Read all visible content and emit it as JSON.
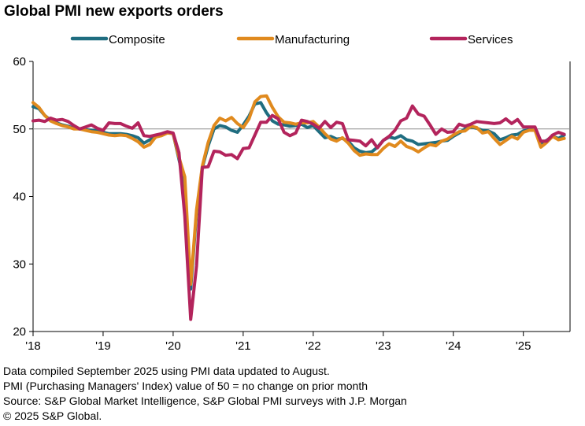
{
  "title": "Global PMI new exports orders",
  "colors": {
    "composite": "#1f6d80",
    "manufacturing": "#e08a1e",
    "services": "#b3245c",
    "reference_line": "#8c8c8c"
  },
  "chart_data": {
    "type": "line",
    "title": "Global PMI new exports orders",
    "xlabel": "",
    "ylabel": "",
    "ylim": [
      20,
      60
    ],
    "yticks": [
      "60",
      "50",
      "40",
      "30",
      "20"
    ],
    "xlim": [
      0,
      92
    ],
    "xtick_labels": [
      "'18",
      "'19",
      "'20",
      "'21",
      "'22",
      "'23",
      "'24",
      "'25"
    ],
    "reference_line": 50,
    "grid": false,
    "legend_position": "top",
    "x": [
      "2018-01",
      "2018-02",
      "2018-03",
      "2018-04",
      "2018-05",
      "2018-06",
      "2018-07",
      "2018-08",
      "2018-09",
      "2018-10",
      "2018-11",
      "2018-12",
      "2019-01",
      "2019-02",
      "2019-03",
      "2019-04",
      "2019-05",
      "2019-06",
      "2019-07",
      "2019-08",
      "2019-09",
      "2019-10",
      "2019-11",
      "2019-12",
      "2020-01",
      "2020-02",
      "2020-03",
      "2020-04",
      "2020-05",
      "2020-06",
      "2020-07",
      "2020-08",
      "2020-09",
      "2020-10",
      "2020-11",
      "2020-12",
      "2021-01",
      "2021-02",
      "2021-03",
      "2021-04",
      "2021-05",
      "2021-06",
      "2021-07",
      "2021-08",
      "2021-09",
      "2021-10",
      "2021-11",
      "2021-12",
      "2022-01",
      "2022-02",
      "2022-03",
      "2022-04",
      "2022-05",
      "2022-06",
      "2022-07",
      "2022-08",
      "2022-09",
      "2022-10",
      "2022-11",
      "2022-12",
      "2023-01",
      "2023-02",
      "2023-03",
      "2023-04",
      "2023-05",
      "2023-06",
      "2023-07",
      "2023-08",
      "2023-09",
      "2023-10",
      "2023-11",
      "2023-12",
      "2024-01",
      "2024-02",
      "2024-03",
      "2024-04",
      "2024-05",
      "2024-06",
      "2024-07",
      "2024-08",
      "2024-09",
      "2024-10",
      "2024-11",
      "2024-12",
      "2025-01",
      "2025-02",
      "2025-03",
      "2025-04",
      "2025-05",
      "2025-06",
      "2025-07",
      "2025-08"
    ],
    "series": [
      {
        "name": "Composite",
        "color": "#1f6d80",
        "values": [
          53.3,
          53.0,
          52.0,
          51.3,
          50.9,
          50.6,
          50.4,
          50.1,
          50.0,
          49.9,
          49.8,
          49.7,
          49.5,
          49.3,
          49.3,
          49.3,
          49.2,
          49.0,
          48.7,
          47.9,
          48.4,
          48.8,
          49.1,
          49.5,
          49.3,
          45.5,
          41.7,
          26.3,
          37.5,
          44.3,
          47.5,
          50.0,
          50.5,
          50.3,
          49.8,
          49.5,
          50.6,
          51.9,
          53.7,
          53.9,
          52.4,
          51.2,
          50.7,
          50.6,
          50.4,
          50.5,
          50.7,
          50.2,
          50.5,
          49.6,
          48.7,
          48.9,
          48.5,
          48.6,
          48.2,
          47.2,
          46.7,
          46.5,
          46.6,
          47.3,
          48.3,
          48.8,
          48.6,
          49.0,
          48.4,
          48.2,
          47.7,
          47.8,
          47.9,
          48.0,
          48.2,
          48.3,
          48.9,
          49.4,
          50.0,
          50.3,
          50.1,
          49.8,
          49.7,
          49.3,
          48.4,
          48.7,
          49.1,
          49.2,
          49.7,
          49.9,
          49.8,
          47.9,
          48.3,
          48.9,
          48.6,
          49.1
        ]
      },
      {
        "name": "Manufacturing",
        "color": "#e08a1e",
        "values": [
          53.9,
          53.2,
          52.0,
          51.2,
          50.8,
          50.5,
          50.3,
          50.0,
          50.0,
          49.8,
          49.6,
          49.5,
          49.3,
          49.1,
          49.0,
          49.1,
          49.0,
          48.6,
          48.1,
          47.3,
          47.7,
          48.8,
          49.0,
          49.4,
          49.3,
          45.8,
          42.9,
          27.0,
          38.0,
          44.5,
          48.0,
          50.5,
          51.6,
          51.2,
          51.7,
          50.8,
          50.2,
          51.5,
          54.0,
          54.8,
          54.9,
          53.2,
          51.8,
          51.0,
          50.9,
          50.7,
          50.9,
          50.9,
          51.1,
          50.3,
          49.3,
          48.5,
          48.2,
          48.7,
          47.9,
          46.8,
          46.1,
          46.3,
          46.2,
          46.2,
          47.1,
          47.8,
          47.4,
          48.2,
          47.4,
          47.1,
          46.6,
          47.2,
          47.7,
          47.5,
          48.2,
          48.5,
          49.1,
          49.6,
          49.7,
          50.4,
          50.2,
          49.4,
          49.6,
          48.6,
          47.7,
          48.3,
          48.9,
          48.5,
          49.5,
          49.8,
          49.8,
          47.3,
          48.0,
          48.9,
          48.4,
          48.6
        ]
      },
      {
        "name": "Services",
        "color": "#b3245c",
        "values": [
          51.2,
          51.3,
          51.1,
          51.6,
          51.3,
          51.4,
          51.1,
          50.5,
          50.0,
          50.3,
          50.6,
          50.1,
          49.8,
          50.9,
          50.8,
          50.8,
          50.4,
          50.1,
          50.9,
          49.0,
          48.9,
          49.1,
          49.3,
          49.6,
          49.4,
          46.5,
          37.1,
          21.8,
          29.7,
          44.3,
          44.4,
          46.7,
          46.6,
          46.1,
          46.2,
          45.6,
          47.1,
          47.2,
          49.1,
          51.0,
          51.0,
          52.0,
          51.5,
          49.5,
          49.0,
          49.4,
          51.3,
          51.1,
          50.7,
          50.1,
          51.1,
          50.2,
          51.0,
          50.8,
          48.4,
          48.3,
          48.2,
          47.5,
          48.4,
          47.2,
          48.3,
          48.9,
          49.8,
          51.2,
          51.6,
          53.4,
          52.2,
          51.9,
          50.6,
          49.2,
          50.0,
          49.5,
          49.6,
          50.7,
          50.4,
          50.7,
          51.1,
          51.0,
          50.9,
          50.8,
          50.9,
          51.5,
          50.8,
          51.4,
          50.3,
          50.3,
          50.3,
          48.2,
          48.2,
          49.1,
          49.5,
          49.2
        ]
      }
    ]
  },
  "footnotes": [
    "Data compiled September 2025 using PMI data updated to August.",
    "PMI (Purchasing Managers' Index) value of 50 = no change on prior month",
    "Source: S&P Global Market Intelligence, S&P Global PMI surveys with J.P. Morgan",
    "© 2025 S&P Global."
  ]
}
